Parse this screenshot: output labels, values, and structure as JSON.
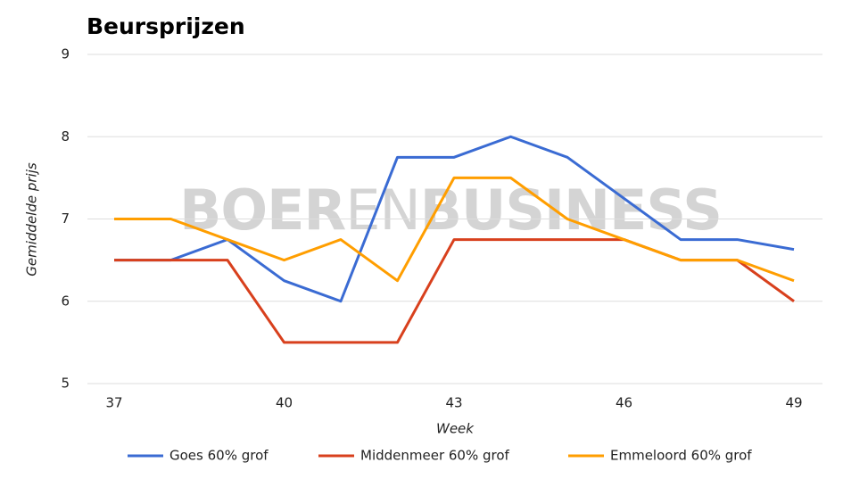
{
  "chart_data": {
    "type": "line",
    "title": "Beursprijzen",
    "x_label": "Week",
    "y_label": "Gemiddelde prijs",
    "watermark": [
      "BOER",
      "EN",
      "BUSINESS"
    ],
    "x": [
      37,
      38,
      39,
      40,
      41,
      42,
      43,
      44,
      45,
      46,
      47,
      48,
      49
    ],
    "xlim": [
      37,
      49
    ],
    "xticks": [
      37,
      40,
      43,
      46,
      49
    ],
    "ylim": [
      5,
      9
    ],
    "yticks": [
      5,
      6,
      7,
      8,
      9
    ],
    "grid": true,
    "legend": "bottom",
    "series": [
      {
        "name": "Goes 60% grof",
        "color": "#3a6bd3",
        "values": [
          6.5,
          6.5,
          6.75,
          6.25,
          6.0,
          7.75,
          7.75,
          8.0,
          7.75,
          7.25,
          6.75,
          6.75,
          6.63
        ]
      },
      {
        "name": "Middenmeer 60% grof",
        "color": "#d8401d",
        "values": [
          6.5,
          6.5,
          6.5,
          5.5,
          5.5,
          5.5,
          6.75,
          6.75,
          6.75,
          6.75,
          6.5,
          6.5,
          6.0
        ]
      },
      {
        "name": "Emmeloord 60% grof",
        "color": "#ff9e00",
        "values": [
          7.0,
          7.0,
          6.75,
          6.5,
          6.75,
          6.25,
          7.5,
          7.5,
          7.0,
          6.75,
          6.5,
          6.5,
          6.25
        ]
      }
    ]
  }
}
